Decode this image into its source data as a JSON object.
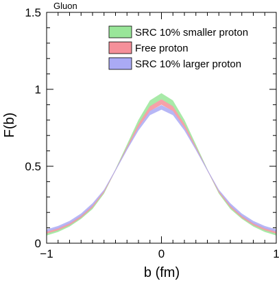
{
  "chart_data": {
    "type": "area",
    "title": "Gluon",
    "xlabel": "b (fm)",
    "ylabel": "F(b)",
    "xlim": [
      -1,
      1
    ],
    "ylim": [
      0,
      1.5
    ],
    "x_ticks": [
      -1,
      0,
      1
    ],
    "x_tick_labels": [
      "−1",
      "0",
      "1"
    ],
    "y_ticks": [
      0,
      0.5,
      1,
      1.5
    ],
    "y_tick_labels": [
      "0",
      "0.5",
      "1",
      "1.5"
    ],
    "grid": false,
    "legend_position": "top-right",
    "x": [
      -1.0,
      -0.9,
      -0.8,
      -0.7,
      -0.6,
      -0.5,
      -0.4,
      -0.3,
      -0.2,
      -0.1,
      0.0,
      0.1,
      0.2,
      0.3,
      0.4,
      0.5,
      0.6,
      0.7,
      0.8,
      0.9,
      1.0
    ],
    "series": [
      {
        "name": "SRC 10% smaller proton",
        "color": "#99e699",
        "edge_color": "#6cc66c",
        "lower": [
          0.05,
          0.073,
          0.108,
          0.158,
          0.222,
          0.322,
          0.472,
          0.622,
          0.772,
          0.888,
          0.935,
          0.888,
          0.772,
          0.622,
          0.472,
          0.322,
          0.222,
          0.158,
          0.108,
          0.073,
          0.05
        ],
        "upper": [
          0.065,
          0.088,
          0.123,
          0.173,
          0.237,
          0.332,
          0.482,
          0.642,
          0.802,
          0.928,
          0.975,
          0.928,
          0.802,
          0.642,
          0.482,
          0.332,
          0.237,
          0.173,
          0.123,
          0.088,
          0.065
        ]
      },
      {
        "name": "Free proton",
        "color": "#f5909a",
        "edge_color": "#e06070",
        "lower": [
          0.062,
          0.084,
          0.117,
          0.165,
          0.232,
          0.33,
          0.47,
          0.612,
          0.75,
          0.858,
          0.9,
          0.858,
          0.75,
          0.612,
          0.47,
          0.33,
          0.232,
          0.165,
          0.117,
          0.084,
          0.062
        ],
        "upper": [
          0.077,
          0.1,
          0.133,
          0.181,
          0.248,
          0.34,
          0.48,
          0.627,
          0.775,
          0.89,
          0.935,
          0.89,
          0.775,
          0.627,
          0.48,
          0.34,
          0.248,
          0.181,
          0.133,
          0.1,
          0.077
        ]
      },
      {
        "name": "SRC 10% larger proton",
        "color": "#aaaaf5",
        "edge_color": "#7d7de0",
        "lower": [
          0.074,
          0.095,
          0.127,
          0.175,
          0.242,
          0.338,
          0.47,
          0.605,
          0.732,
          0.832,
          0.868,
          0.832,
          0.732,
          0.605,
          0.47,
          0.338,
          0.242,
          0.175,
          0.127,
          0.095,
          0.074
        ],
        "upper": [
          0.09,
          0.112,
          0.145,
          0.193,
          0.26,
          0.348,
          0.48,
          0.618,
          0.752,
          0.86,
          0.898,
          0.86,
          0.752,
          0.618,
          0.48,
          0.348,
          0.26,
          0.193,
          0.145,
          0.112,
          0.09
        ]
      }
    ]
  }
}
